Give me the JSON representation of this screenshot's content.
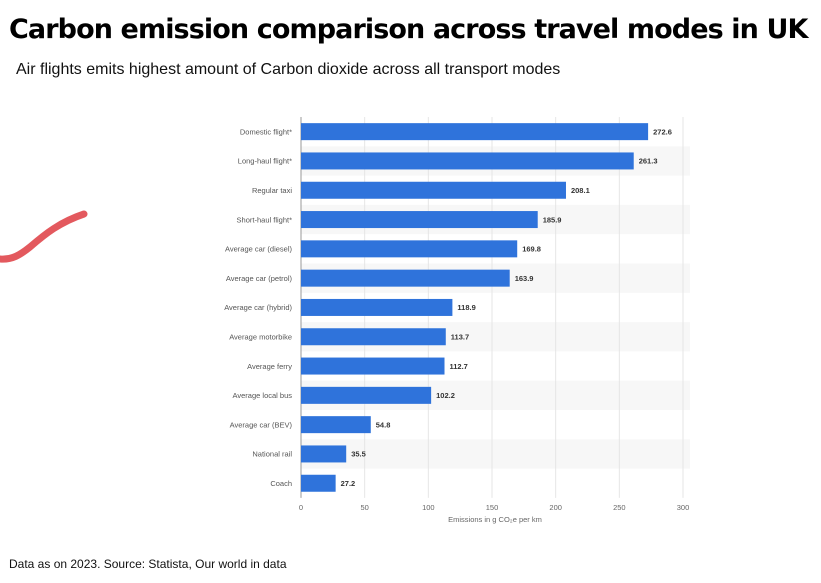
{
  "title": "Carbon emission comparison across travel modes in UK",
  "subtitle": "Air flights emits highest amount of Carbon dioxide across all transport modes",
  "footer": "Data as on 2023. Source: Statista, Our world in data",
  "colors": {
    "bar": "#2F73DB",
    "band": "#F7F7F7",
    "grid": "#E6E6E6",
    "annotation": "#E0474C"
  },
  "chart_data": {
    "type": "bar",
    "orientation": "horizontal",
    "categories": [
      "Domestic flight*",
      "Long-haul flight*",
      "Regular taxi",
      "Short-haul flight*",
      "Average car (diesel)",
      "Average car (petrol)",
      "Average car (hybrid)",
      "Average motorbike",
      "Average ferry",
      "Average local bus",
      "Average car (BEV)",
      "National rail",
      "Coach"
    ],
    "values": [
      272.6,
      261.3,
      208.1,
      185.9,
      169.8,
      163.9,
      118.9,
      113.7,
      112.7,
      102.2,
      54.8,
      35.5,
      27.2
    ],
    "value_labels": [
      "272.6",
      "261.3",
      "208.1",
      "185.9",
      "169.8",
      "163.9",
      "118.9",
      "113.7",
      "112.7",
      "102.2",
      "54.8",
      "35.5",
      "27.2"
    ],
    "xticks": [
      "0",
      "50",
      "100",
      "150",
      "200",
      "250",
      "300"
    ],
    "xlabel": "Emissions in g CO₂e per km",
    "ylabel": "",
    "xlim": [
      0,
      300
    ],
    "grid": true
  }
}
